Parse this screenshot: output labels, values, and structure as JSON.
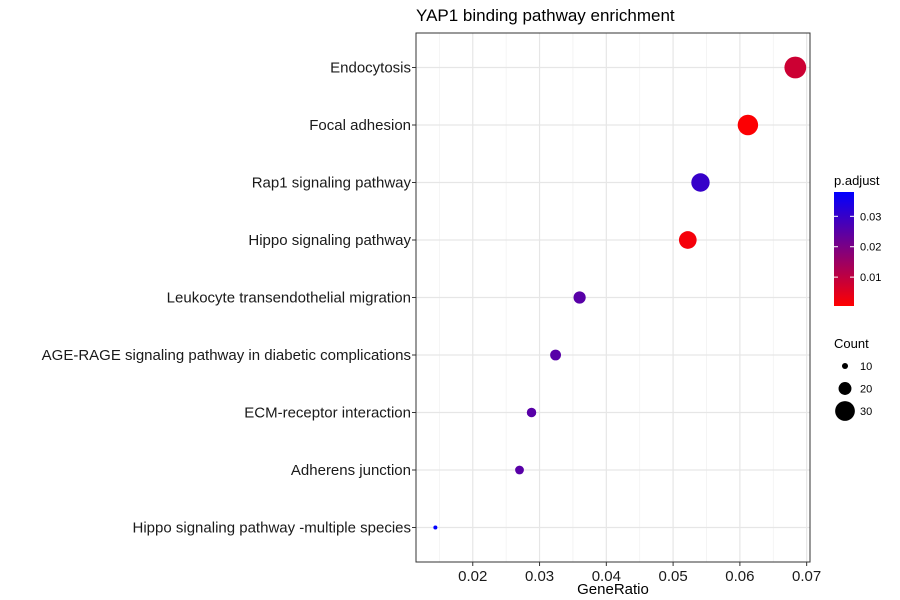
{
  "chart_data": {
    "type": "scatter",
    "title": "YAP1 binding pathway enrichment",
    "xlabel": "GeneRatio",
    "ylabel": "",
    "xlim": [
      0.0115,
      0.0705
    ],
    "xticks": [
      0.02,
      0.03,
      0.04,
      0.05,
      0.06,
      0.07
    ],
    "xtick_labels": [
      "0.02",
      "0.03",
      "0.04",
      "0.05",
      "0.06",
      "0.07"
    ],
    "grid": true,
    "legend_position": "right",
    "points": [
      {
        "label": "Endocytosis",
        "gene_ratio": 0.0683,
        "count": 33,
        "p_adjust": 0.008
      },
      {
        "label": "Focal adhesion",
        "gene_ratio": 0.0612,
        "count": 31,
        "p_adjust": 0.001
      },
      {
        "label": "Rap1 signaling pathway",
        "gene_ratio": 0.0541,
        "count": 28,
        "p_adjust": 0.03
      },
      {
        "label": "Hippo signaling pathway",
        "gene_ratio": 0.0522,
        "count": 27,
        "p_adjust": 0.002
      },
      {
        "label": "Leukocyte transendothelial migration",
        "gene_ratio": 0.036,
        "count": 19,
        "p_adjust": 0.025
      },
      {
        "label": "AGE-RAGE signaling pathway in diabetic complications",
        "gene_ratio": 0.0324,
        "count": 17,
        "p_adjust": 0.025
      },
      {
        "label": "ECM-receptor interaction",
        "gene_ratio": 0.0288,
        "count": 15,
        "p_adjust": 0.025
      },
      {
        "label": "Adherens junction",
        "gene_ratio": 0.027,
        "count": 14,
        "p_adjust": 0.025
      },
      {
        "label": "Hippo signaling pathway -multiple species",
        "gene_ratio": 0.0144,
        "count": 7,
        "p_adjust": 0.038
      }
    ],
    "color_legend": {
      "title": "p.adjust",
      "range": [
        0.0005,
        0.038
      ],
      "low_color": "#ff0000",
      "high_color": "#0000ff",
      "ticks": [
        0.01,
        0.02,
        0.03
      ],
      "tick_labels": [
        "0.01",
        "0.02",
        "0.03"
      ]
    },
    "size_legend": {
      "title": "Count",
      "values": [
        10,
        20,
        30
      ],
      "labels": [
        "10",
        "20",
        "30"
      ]
    }
  }
}
